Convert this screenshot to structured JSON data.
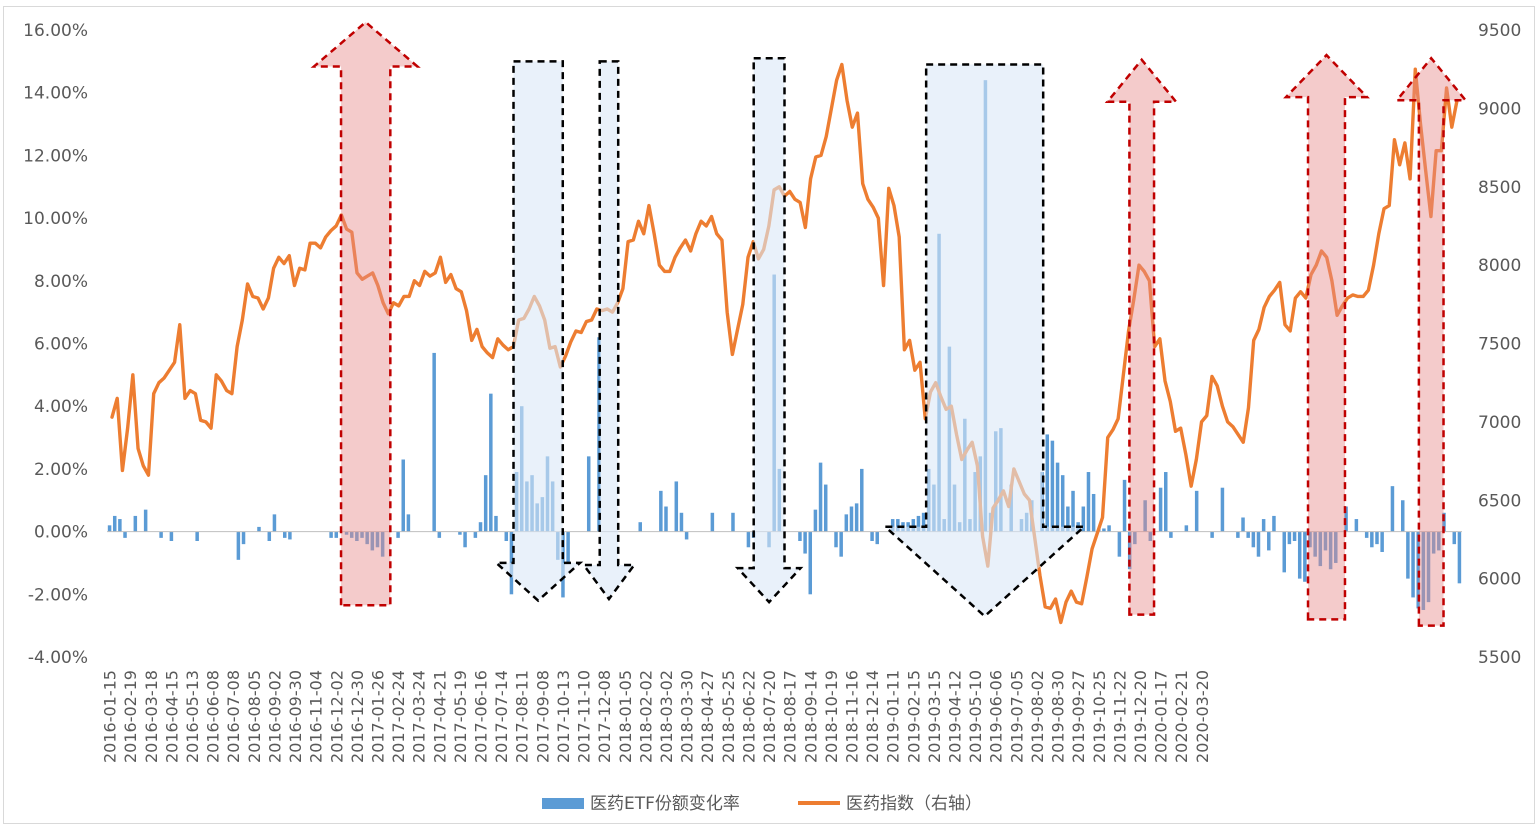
{
  "chart_data": {
    "type": "bar+line",
    "title": "",
    "ylabel_left": "",
    "ylabel_right": "",
    "ylim_left": [
      -4,
      16
    ],
    "ylim_right": [
      5500,
      9500
    ],
    "left_ticks": [
      "-4.00%",
      "-2.00%",
      "0.00%",
      "2.00%",
      "4.00%",
      "6.00%",
      "8.00%",
      "10.00%",
      "12.00%",
      "14.00%",
      "16.00%"
    ],
    "left_tick_values": [
      -4,
      -2,
      0,
      2,
      4,
      6,
      8,
      10,
      12,
      14,
      16
    ],
    "right_ticks": [
      "5500",
      "6000",
      "6500",
      "7000",
      "7500",
      "8000",
      "8500",
      "9000",
      "9500"
    ],
    "right_tick_values": [
      5500,
      6000,
      6500,
      7000,
      7500,
      8000,
      8500,
      9000,
      9500
    ],
    "x_tick_labels": [
      "2016-01-15",
      "2016-02-19",
      "2016-03-18",
      "2016-04-15",
      "2016-05-13",
      "2016-06-08",
      "2016-07-08",
      "2016-08-05",
      "2016-09-02",
      "2016-09-30",
      "2016-11-04",
      "2016-12-02",
      "2016-12-30",
      "2017-01-26",
      "2017-02-24",
      "2017-03-24",
      "2017-04-21",
      "2017-05-19",
      "2017-06-16",
      "2017-07-14",
      "2017-08-11",
      "2017-09-08",
      "2017-10-13",
      "2017-11-10",
      "2017-12-08",
      "2018-01-05",
      "2018-02-02",
      "2018-03-02",
      "2018-03-30",
      "2018-04-27",
      "2018-05-25",
      "2018-06-22",
      "2018-07-20",
      "2018-08-17",
      "2018-09-14",
      "2018-10-19",
      "2018-11-16",
      "2018-12-14",
      "2019-01-11",
      "2019-02-15",
      "2019-03-15",
      "2019-04-12",
      "2019-05-10",
      "2019-06-06",
      "2019-07-05",
      "2019-08-02",
      "2019-08-30",
      "2019-09-27",
      "2019-10-25",
      "2019-11-22",
      "2019-12-20",
      "2020-01-17",
      "2020-02-21",
      "2020-03-20"
    ],
    "tick_every": 4,
    "bar_series": {
      "name": "医药ETF份额变化率",
      "color": "#5b9bd5",
      "unit": "%",
      "values": [
        0.2,
        0.5,
        0.4,
        -0.2,
        0,
        0.5,
        0,
        0.7,
        0,
        0,
        -0.2,
        0,
        -0.3,
        0,
        0,
        0,
        0,
        -0.3,
        0,
        0,
        0,
        0,
        0,
        0,
        0,
        -0.9,
        -0.4,
        0,
        0,
        0.15,
        0,
        -0.3,
        0.55,
        0,
        -0.2,
        -0.25,
        0,
        0,
        0,
        0,
        0,
        0,
        0,
        -0.2,
        -0.2,
        0,
        -0.1,
        -0.2,
        -0.3,
        -0.2,
        -0.4,
        -0.6,
        -0.5,
        -0.8,
        0,
        0,
        -0.2,
        2.3,
        0.55,
        0,
        0,
        0,
        0,
        5.7,
        -0.2,
        0,
        0,
        0,
        -0.1,
        -0.5,
        0,
        -0.2,
        0.3,
        1.8,
        4.4,
        0.5,
        0,
        -0.3,
        -2.0,
        1.9,
        4.0,
        1.6,
        1.8,
        0.9,
        1.1,
        2.4,
        1.6,
        -0.9,
        -2.1,
        -1.0,
        0,
        0,
        0,
        2.4,
        0,
        6.2,
        0,
        0,
        0,
        0,
        0,
        0,
        0,
        0.3,
        0,
        0,
        0,
        1.3,
        0.8,
        0,
        1.6,
        0.6,
        -0.25,
        0,
        0,
        0,
        0,
        0.6,
        0,
        0,
        0,
        0.6,
        0,
        0,
        -0.5,
        -0.2,
        0,
        0,
        -0.5,
        8.2,
        2.0,
        0,
        0,
        0,
        -0.3,
        -0.7,
        -2.0,
        0.7,
        2.2,
        1.5,
        0,
        -0.5,
        -0.8,
        0.55,
        0.8,
        0.9,
        2.0,
        0,
        -0.3,
        -0.4,
        0,
        0,
        0.4,
        0.4,
        0.3,
        0.3,
        0.4,
        0.5,
        0.6,
        2.0,
        1.5,
        9.5,
        0.4,
        5.9,
        1.5,
        0.3,
        3.6,
        0.4,
        1.9,
        2.4,
        14.4,
        0.6,
        3.2,
        3.3,
        0,
        1.5,
        0,
        0.4,
        0.6,
        1.0,
        0,
        1.9,
        3.1,
        2.9,
        2.2,
        1.8,
        0.8,
        1.3,
        0.3,
        0.8,
        1.9,
        1.2,
        0.1,
        0.1,
        0.2,
        0,
        -0.8,
        1.65,
        -1.2,
        -0.4,
        0,
        1.0,
        -0.3,
        0,
        1.4,
        1.9,
        -0.2,
        0,
        0,
        0.2,
        0,
        1.3,
        0,
        0,
        -0.2,
        0,
        1.4,
        0,
        0,
        -0.2,
        0.45,
        -0.2,
        -0.5,
        -0.8,
        0.4,
        -0.6,
        0.5,
        0,
        -1.3,
        -0.4,
        -0.3,
        -1.5,
        -1.6,
        -0.5,
        -0.8,
        -1.1,
        -0.6,
        -1.2,
        -1.0,
        0,
        0.8,
        0,
        0.4,
        0,
        -0.2,
        -0.5,
        -0.4,
        -0.65,
        0,
        1.45,
        0,
        1.0,
        -1.5,
        -2.1,
        -2.45,
        -2.5,
        -2.25,
        -0.7,
        -0.6,
        0.6,
        0,
        -0.4,
        -1.65
      ]
    },
    "line_series": {
      "name": "医药指数（右轴）",
      "color": "#ed7d31",
      "axis": "right",
      "values": [
        7030,
        7150,
        6690,
        6960,
        7300,
        6830,
        6720,
        6660,
        7180,
        7250,
        7280,
        7330,
        7380,
        7620,
        7150,
        7200,
        7180,
        7010,
        7000,
        6960,
        7300,
        7260,
        7200,
        7180,
        7480,
        7650,
        7880,
        7800,
        7790,
        7720,
        7790,
        7980,
        8050,
        8010,
        8060,
        7870,
        7980,
        7970,
        8140,
        8140,
        8110,
        8180,
        8220,
        8250,
        8320,
        8230,
        8210,
        7950,
        7910,
        7930,
        7950,
        7870,
        7760,
        7690,
        7760,
        7740,
        7800,
        7800,
        7900,
        7870,
        7960,
        7930,
        7950,
        8050,
        7890,
        7940,
        7850,
        7830,
        7710,
        7520,
        7590,
        7480,
        7440,
        7410,
        7530,
        7490,
        7460,
        7480,
        7650,
        7660,
        7720,
        7800,
        7740,
        7650,
        7470,
        7480,
        7350,
        7420,
        7510,
        7580,
        7570,
        7640,
        7650,
        7720,
        7710,
        7720,
        7700,
        7760,
        7850,
        8150,
        8160,
        8280,
        8200,
        8380,
        8200,
        8000,
        7960,
        7960,
        8050,
        8110,
        8160,
        8090,
        8200,
        8280,
        8250,
        8310,
        8200,
        8160,
        7700,
        7430,
        7590,
        7750,
        8050,
        8150,
        8040,
        8100,
        8250,
        8480,
        8500,
        8440,
        8470,
        8420,
        8400,
        8240,
        8550,
        8690,
        8700,
        8820,
        9000,
        9180,
        9280,
        9050,
        8880,
        8970,
        8520,
        8420,
        8370,
        8300,
        7870,
        8490,
        8380,
        8180,
        7460,
        7520,
        7330,
        7380,
        7020,
        7190,
        7250,
        7160,
        7080,
        7100,
        6920,
        6760,
        6820,
        6870,
        6720,
        6270,
        6080,
        6450,
        6500,
        6560,
        6460,
        6700,
        6620,
        6540,
        6500,
        6260,
        6020,
        5820,
        5810,
        5870,
        5720,
        5850,
        5920,
        5850,
        5840,
        6010,
        6190,
        6290,
        6390,
        6900,
        6950,
        7020,
        7300,
        7580,
        7780,
        8000,
        7960,
        7900,
        7480,
        7530,
        7260,
        7130,
        6940,
        6960,
        6790,
        6590,
        6760,
        7000,
        7040,
        7290,
        7230,
        7100,
        7000,
        6970,
        6920,
        6870,
        7090,
        7520,
        7590,
        7730,
        7800,
        7840,
        7890,
        7620,
        7580,
        7790,
        7830,
        7790,
        7940,
        8000,
        8090,
        8050,
        7900,
        7680,
        7740,
        7790,
        7810,
        7800,
        7800,
        7840,
        8000,
        8200,
        8360,
        8380,
        8800,
        8640,
        8780,
        8550,
        9250,
        8900,
        8600,
        8310,
        8730,
        8730,
        9130,
        8880,
        9050
      ]
    },
    "legend": [
      "医药ETF份额变化率",
      "医药指数（右轴）"
    ],
    "annotations": {
      "up_arrows_color": "#c00000",
      "down_arrows_color": "#000000",
      "up_arrows": [
        {
          "x_from": "2016-10-07",
          "x_to": "2016-12-02",
          "y_top": 9550,
          "y_bottom": 5830
        },
        {
          "x_from": "2019-03-22",
          "x_to": "2019-04-19",
          "y_top": 9310,
          "y_bottom": 5770
        },
        {
          "x_from": "2019-10-11",
          "x_to": "2019-11-22",
          "y_top": 9340,
          "y_bottom": 5740
        },
        {
          "x_from": "2020-02-14",
          "x_to": "2020-03-13",
          "y_top": 9320,
          "y_bottom": 5700
        }
      ],
      "down_arrows": [
        {
          "x_from": "2017-04-21",
          "x_to": "2017-06-16",
          "y_top": 9300,
          "y_bottom": 5860
        },
        {
          "x_from": "2017-07-28",
          "x_to": "2017-08-18",
          "y_top": 9300,
          "y_bottom": 5870
        },
        {
          "x_from": "2018-01-19",
          "x_to": "2018-02-23",
          "y_top": 9320,
          "y_bottom": 5850
        },
        {
          "x_from": "2018-08-03",
          "x_to": "2018-12-14",
          "y_top": 9280,
          "y_bottom": 5760
        }
      ]
    }
  }
}
